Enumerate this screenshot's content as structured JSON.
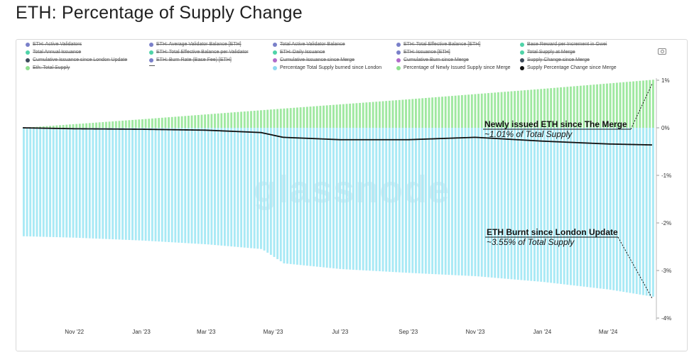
{
  "title": "ETH: Percentage of Supply Change",
  "watermark": "glassnode",
  "legend": [
    {
      "label": "ETH: Active Validators",
      "color": "#7a80c9",
      "enabled": false
    },
    {
      "label": "ETH: Average Validator Balance [ETH]",
      "color": "#7a80c9",
      "enabled": false
    },
    {
      "label": "Total Active Validator Balance",
      "color": "#7a80c9",
      "enabled": false
    },
    {
      "label": "ETH: Total Effective Balance [ETH]",
      "color": "#7a80c9",
      "enabled": false
    },
    {
      "label": "Base Reward per Increment in Gwei",
      "color": "#4fd3a8",
      "enabled": false
    },
    {
      "label": "Total Annual Issuance",
      "color": "#4fd3a8",
      "enabled": false
    },
    {
      "label": "ETH: Total Effective Balance per Validator",
      "color": "#4fd3a8",
      "enabled": false
    },
    {
      "label": "ETH: Daily Issuance",
      "color": "#4fd3a8",
      "enabled": false
    },
    {
      "label": "ETH: Issuance [ETH]",
      "color": "#7a80c9",
      "enabled": false
    },
    {
      "label": "Total Supply at Merge",
      "color": "#4fd3a8",
      "enabled": false
    },
    {
      "label": "Cumulative Issuance since London Update",
      "color": "#3d4a5a",
      "enabled": false
    },
    {
      "label": "ETH: Burn Rate (Base Fee) [ETH]",
      "color": "#7a80c9",
      "enabled": false
    },
    {
      "label": "Cumulative Issuance since Merge",
      "color": "#b06ac9",
      "enabled": false
    },
    {
      "label": "Cumulative Burn since Merge",
      "color": "#b06ac9",
      "enabled": false
    },
    {
      "label": "Supply Change since Merge",
      "color": "#3d4a5a",
      "enabled": false
    },
    {
      "label": "Eth: Total Supply",
      "color": "#8fe08f",
      "enabled": false
    },
    {
      "label": "",
      "color": "#555555",
      "enabled": true,
      "dash": true
    },
    {
      "label": "Percentage Total Supply burned since London",
      "color": "#8fd8f0",
      "enabled": true
    },
    {
      "label": "Percentage of Newly Issued Supply since Merge",
      "color": "#8fe08f",
      "enabled": true
    },
    {
      "label": "Supply Percentage Change since Merge",
      "color": "#111111",
      "enabled": true
    }
  ],
  "annotations": {
    "issued_title": "Newly issued ETH since The Merge",
    "issued_sub": "~1.01% of Total Supply",
    "burnt_title": "ETH Burnt since London Update",
    "burnt_sub": "~3.55% of Total Supply"
  },
  "chart_data": {
    "type": "area",
    "title": "ETH: Percentage of Supply Change",
    "x_ticks": [
      "Nov '22",
      "Jan '23",
      "Mar '23",
      "May '23",
      "Jul '23",
      "Sep '23",
      "Nov '23",
      "Jan '24",
      "Mar '24"
    ],
    "y_ticks": [
      "1%",
      "0%",
      "-1%",
      "-2%",
      "-3%",
      "-4%"
    ],
    "ylim": [
      -4,
      1
    ],
    "x_range": [
      "2022-09-15",
      "2024-04-10"
    ],
    "series": [
      {
        "name": "Percentage of Newly Issued Supply since Merge",
        "type": "bar",
        "color": "#8fe08f",
        "points": [
          [
            "2022-09-15",
            0.0
          ],
          [
            "2023-01-01",
            0.18
          ],
          [
            "2023-05-01",
            0.39
          ],
          [
            "2023-09-01",
            0.6
          ],
          [
            "2024-01-01",
            0.82
          ],
          [
            "2024-04-10",
            1.01
          ]
        ]
      },
      {
        "name": "Percentage Total Supply burned since London",
        "type": "bar",
        "color": "#8fd8f0",
        "points": [
          [
            "2022-09-15",
            -2.28
          ],
          [
            "2022-11-01",
            -2.31
          ],
          [
            "2023-01-01",
            -2.37
          ],
          [
            "2023-03-01",
            -2.45
          ],
          [
            "2023-04-20",
            -2.55
          ],
          [
            "2023-05-10",
            -2.85
          ],
          [
            "2023-07-01",
            -2.97
          ],
          [
            "2023-09-01",
            -3.05
          ],
          [
            "2023-11-01",
            -3.12
          ],
          [
            "2024-01-01",
            -3.24
          ],
          [
            "2024-03-01",
            -3.4
          ],
          [
            "2024-04-10",
            -3.55
          ]
        ]
      },
      {
        "name": "Supply Percentage Change since Merge",
        "type": "line",
        "color": "#111111",
        "points": [
          [
            "2022-09-15",
            0.0
          ],
          [
            "2022-11-01",
            -0.02
          ],
          [
            "2023-01-01",
            -0.03
          ],
          [
            "2023-03-01",
            -0.05
          ],
          [
            "2023-04-20",
            -0.1
          ],
          [
            "2023-05-10",
            -0.2
          ],
          [
            "2023-07-01",
            -0.25
          ],
          [
            "2023-09-01",
            -0.25
          ],
          [
            "2023-11-01",
            -0.2
          ],
          [
            "2024-01-01",
            -0.28
          ],
          [
            "2024-03-01",
            -0.34
          ],
          [
            "2024-04-10",
            -0.36
          ]
        ]
      }
    ],
    "grid": false,
    "legend_position": "top"
  }
}
